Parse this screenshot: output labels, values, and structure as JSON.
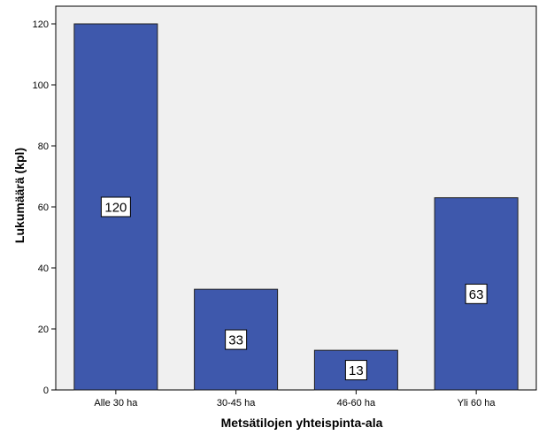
{
  "chart_data": {
    "type": "bar",
    "categories": [
      "Alle 30 ha",
      "30-45 ha",
      "46-60 ha",
      "Yli 60 ha"
    ],
    "values": [
      120,
      33,
      13,
      63
    ],
    "data_labels": [
      "120",
      "33",
      "13",
      "63"
    ],
    "xlabel": "Metsätilojen yhteispinta-ala",
    "ylabel": "Lukumäärä (kpl)",
    "ylim": [
      0,
      120
    ],
    "yticks": [
      0,
      20,
      40,
      60,
      80,
      100,
      120
    ],
    "grid": false,
    "legend": "none"
  },
  "colors": {
    "plot_background": "#f0f0f0",
    "bar_fill": "#3e58ac",
    "bar_stroke": "#1e1e1e",
    "label_box": "#ffffff"
  }
}
